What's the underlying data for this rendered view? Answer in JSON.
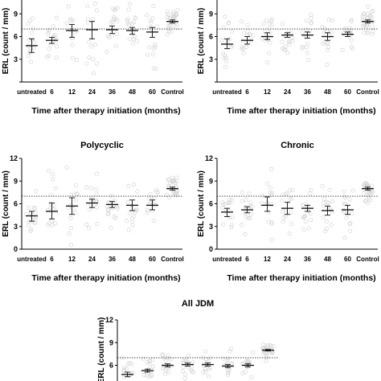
{
  "chart_data": [
    {
      "type": "scatter",
      "title": "",
      "xlabel": "Time after therapy initiation (months)",
      "ylabel": "ERL (count / mm)",
      "categories": [
        "untreated",
        "6",
        "12",
        "24",
        "36",
        "48",
        "60",
        "Control"
      ],
      "ylim": [
        0,
        12
      ],
      "yticks": [
        "3",
        "6",
        "9"
      ],
      "reference_line": 7.0,
      "mean": [
        4.8,
        5.5,
        6.8,
        6.9,
        6.9,
        6.8,
        6.6,
        8.0
      ],
      "lower": [
        3.9,
        5.1,
        5.9,
        5.7,
        6.4,
        6.3,
        5.9,
        7.8
      ],
      "upper": [
        5.7,
        5.9,
        7.6,
        8.0,
        7.4,
        7.2,
        7.2,
        8.2
      ]
    },
    {
      "type": "scatter",
      "title": "",
      "xlabel": "Time after therapy initiation (months)",
      "ylabel": "ERL (count / mm)",
      "categories": [
        "untreated",
        "6",
        "12",
        "24",
        "36",
        "48",
        "60",
        "Control"
      ],
      "ylim": [
        0,
        12
      ],
      "yticks": [
        "3",
        "6",
        "9"
      ],
      "reference_line": 7.0,
      "mean": [
        5.0,
        5.5,
        6.0,
        6.2,
        6.2,
        6.0,
        6.3,
        8.0
      ],
      "lower": [
        4.4,
        5.0,
        5.6,
        5.9,
        5.8,
        5.5,
        6.0,
        7.8
      ],
      "upper": [
        5.7,
        6.0,
        6.5,
        6.5,
        6.6,
        6.5,
        6.6,
        8.2
      ]
    },
    {
      "type": "scatter",
      "title": "Polycyclic",
      "xlabel": "Time after therapy initiation (months)",
      "ylabel": "ERL (count / mm)",
      "categories": [
        "untreated",
        "6",
        "12",
        "24",
        "36",
        "48",
        "60",
        "Control"
      ],
      "ylim": [
        0,
        12
      ],
      "yticks": [
        "0",
        "3",
        "6",
        "9",
        "12"
      ],
      "reference_line": 7.0,
      "mean": [
        4.4,
        5.0,
        5.7,
        6.1,
        5.9,
        5.8,
        5.8,
        8.0
      ],
      "lower": [
        3.7,
        4.0,
        4.6,
        5.5,
        5.5,
        5.1,
        5.2,
        7.8
      ],
      "upper": [
        5.0,
        6.1,
        6.8,
        6.6,
        6.3,
        6.5,
        6.5,
        8.2
      ]
    },
    {
      "type": "scatter",
      "title": "Chronic",
      "xlabel": "Time after therapy initiation (months)",
      "ylabel": "ERL (count / mm)",
      "categories": [
        "untreated",
        "6",
        "12",
        "24",
        "36",
        "48",
        "60",
        "Control"
      ],
      "ylim": [
        0,
        12
      ],
      "yticks": [
        "0",
        "3",
        "6",
        "9",
        "12"
      ],
      "reference_line": 7.0,
      "mean": [
        4.9,
        5.2,
        5.8,
        5.4,
        5.4,
        5.1,
        5.2,
        8.0
      ],
      "lower": [
        4.3,
        4.8,
        5.0,
        4.6,
        5.0,
        4.5,
        4.6,
        7.8
      ],
      "upper": [
        5.4,
        5.6,
        6.9,
        6.2,
        5.8,
        5.7,
        5.8,
        8.2
      ]
    },
    {
      "type": "scatter",
      "title": "All JDM",
      "xlabel": "",
      "ylabel": "ERL (count / mm)",
      "categories": [
        "untreated",
        "6",
        "12",
        "24",
        "36",
        "48",
        "60",
        "Control"
      ],
      "ylim": [
        0,
        12
      ],
      "yticks": [
        "6",
        "9",
        "12"
      ],
      "reference_line": 7.0,
      "mean": [
        4.8,
        5.3,
        6.0,
        6.1,
        6.1,
        5.9,
        6.0,
        8.0
      ],
      "lower": [
        4.5,
        5.1,
        5.8,
        5.9,
        5.9,
        5.7,
        5.8,
        7.9
      ],
      "upper": [
        5.1,
        5.5,
        6.2,
        6.3,
        6.3,
        6.1,
        6.2,
        8.1
      ]
    }
  ]
}
